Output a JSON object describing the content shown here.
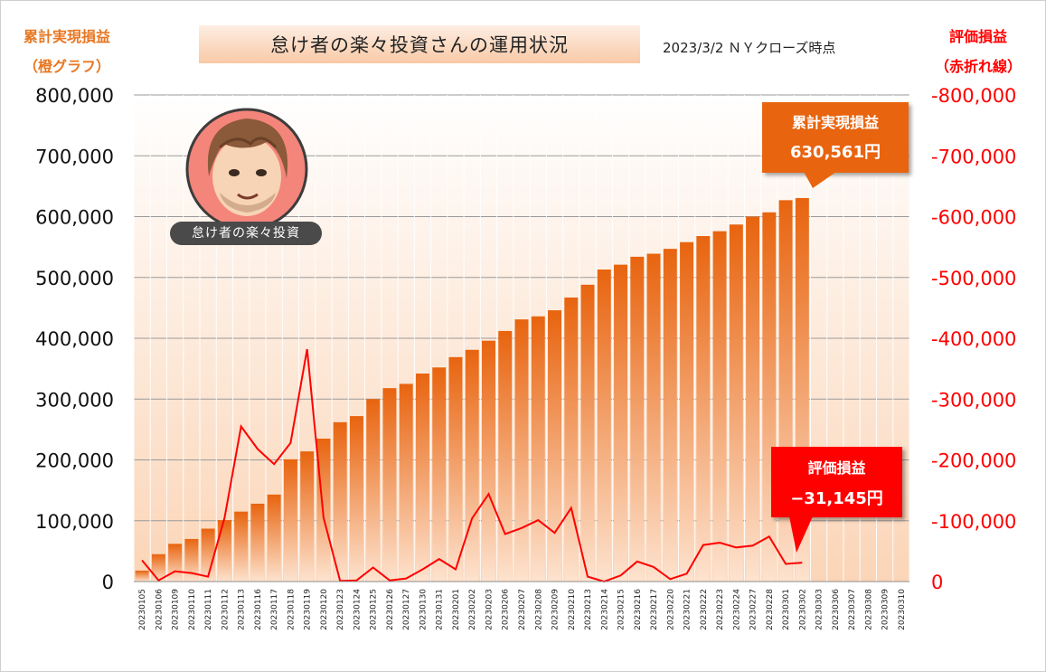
{
  "title": "怠け者の楽々投資さんの運用状況",
  "subtitle": "2023/3/2 ＮＹクローズ時点",
  "left_axis_title": [
    "累計実現損益",
    "（橙グラフ）"
  ],
  "right_axis_title": [
    "評価損益",
    "（赤折れ線）"
  ],
  "callout_realized": {
    "label": "累計実現損益",
    "value": "630,561円"
  },
  "callout_unrealized": {
    "label": "評価損益",
    "value": "−31,145円"
  },
  "avatar": {
    "caption": "怠け者の楽々投資",
    "icon": "avatar-face-icon"
  },
  "colors": {
    "bar_top": "#e8640f",
    "bar_bottom": "#fde3cf",
    "line": "#ff0000",
    "left_axis_title": "#e87722",
    "right_axis_title": "#ff0000"
  },
  "chart_data": {
    "type": "bar",
    "categories": [
      "20230105",
      "20230106",
      "20230109",
      "20230110",
      "20230111",
      "20230112",
      "20230113",
      "20230116",
      "20230117",
      "20230118",
      "20230119",
      "20230120",
      "20230123",
      "20230124",
      "20230125",
      "20230126",
      "20230127",
      "20230130",
      "20230131",
      "20230201",
      "20230202",
      "20230203",
      "20230206",
      "20230207",
      "20230208",
      "20230209",
      "20230210",
      "20230213",
      "20230214",
      "20230215",
      "20230216",
      "20230217",
      "20230220",
      "20230221",
      "20230222",
      "20230223",
      "20230224",
      "20230227",
      "20230228",
      "20230301",
      "20230302",
      "20230303",
      "20230306",
      "20230307",
      "20230308",
      "20230309",
      "20230310"
    ],
    "series": [
      {
        "axis": "left",
        "kind": "bar",
        "values": [
          18000,
          45000,
          62000,
          70000,
          87000,
          101000,
          115000,
          128000,
          143000,
          201000,
          214000,
          235000,
          262000,
          272000,
          300000,
          318000,
          325000,
          342000,
          352000,
          369000,
          381000,
          396000,
          412000,
          431000,
          436000,
          446000,
          467000,
          488000,
          513000,
          521000,
          534000,
          539000,
          547000,
          558000,
          568000,
          576000,
          587000,
          600000,
          607000,
          627000,
          630561,
          null,
          null,
          null,
          null,
          null,
          null
        ]
      },
      {
        "axis": "right",
        "kind": "line",
        "values": [
          -35000,
          -2000,
          -17000,
          -14000,
          -8000,
          -105000,
          -255000,
          -218000,
          -193000,
          -228000,
          -382000,
          -105000,
          -1000,
          -2000,
          -23000,
          -2000,
          -5000,
          -20000,
          -37000,
          -20000,
          -104000,
          -144000,
          -78000,
          -88000,
          -101000,
          -80000,
          -121000,
          -8000,
          0,
          -10000,
          -33000,
          -24000,
          -4000,
          -13000,
          -60000,
          -64000,
          -56000,
          -59000,
          -74000,
          -29000,
          -31145,
          null,
          null,
          null,
          null,
          null,
          null
        ]
      }
    ],
    "left_ylim": [
      0,
      800000
    ],
    "left_ticks": [
      "0",
      "100,000",
      "200,000",
      "300,000",
      "400,000",
      "500,000",
      "600,000",
      "700,000",
      "800,000"
    ],
    "right_ylim": [
      0,
      -800000
    ],
    "right_ticks": [
      "0",
      "-100,000",
      "-200,000",
      "-300,000",
      "-400,000",
      "-500,000",
      "-600,000",
      "-700,000",
      "-800,000"
    ],
    "grid": true
  }
}
